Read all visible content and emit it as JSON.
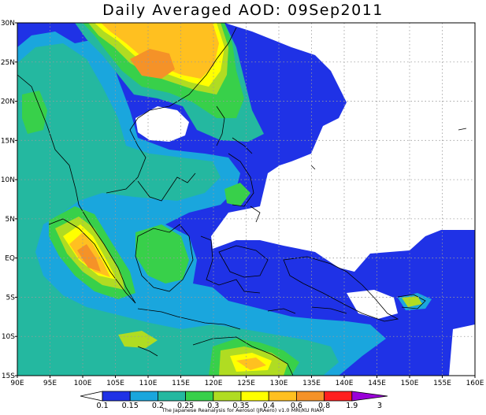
{
  "title": "Daily Averaged AOD: 09Sep2011",
  "map": {
    "lon_range": [
      90,
      160
    ],
    "lat_range": [
      -15,
      30
    ],
    "lon_ticks": [
      {
        "value": 90,
        "label": "90E"
      },
      {
        "value": 95,
        "label": "95E"
      },
      {
        "value": 100,
        "label": "100E"
      },
      {
        "value": 105,
        "label": "105E"
      },
      {
        "value": 110,
        "label": "110E"
      },
      {
        "value": 115,
        "label": "115E"
      },
      {
        "value": 120,
        "label": "120E"
      },
      {
        "value": 125,
        "label": "125E"
      },
      {
        "value": 130,
        "label": "130E"
      },
      {
        "value": 135,
        "label": "135E"
      },
      {
        "value": 140,
        "label": "140E"
      },
      {
        "value": 145,
        "label": "145E"
      },
      {
        "value": 150,
        "label": "150E"
      },
      {
        "value": 155,
        "label": "155E"
      },
      {
        "value": 160,
        "label": "160E"
      }
    ],
    "lat_ticks": [
      {
        "value": 30,
        "label": "30N"
      },
      {
        "value": 25,
        "label": "25N"
      },
      {
        "value": 20,
        "label": "20N"
      },
      {
        "value": 15,
        "label": "15N"
      },
      {
        "value": 10,
        "label": "10N"
      },
      {
        "value": 5,
        "label": "5N"
      },
      {
        "value": 0,
        "label": "EQ"
      },
      {
        "value": -5,
        "label": "5S"
      },
      {
        "value": -10,
        "label": "10S"
      },
      {
        "value": -15,
        "label": "15S"
      }
    ],
    "grid": "dotted",
    "colors": {
      "0.15": "#1f32e6",
      "0.2": "#1aa6dd",
      "0.25": "#24b8a0",
      "0.3": "#38d04a",
      "0.35": "#b0dc22",
      "0.4": "#ffff00",
      "0.6": "#ffc020",
      "0.8": "#f59228",
      "1.9": "#ff1f1f",
      "3": "#9a00d8",
      "nodata": "#ffffff"
    }
  },
  "colorbar": {
    "levels": [
      "0.1",
      "0.15",
      "0.2",
      "0.25",
      "0.3",
      "0.35",
      "0.4",
      "0.6",
      "0.8",
      "1.9",
      "3"
    ],
    "colors": [
      "#1f32e6",
      "#1aa6dd",
      "#24b8a0",
      "#38d04a",
      "#b0dc22",
      "#ffff00",
      "#ffc020",
      "#f59228",
      "#ff1f1f",
      "#9a00d8"
    ],
    "under_color": "#ffffff",
    "over_color": "#9a00d8"
  },
  "credit": "The Japanese Reanalysis for Aerosol (JRAero) v1.0 MRI/KU RIAM"
}
